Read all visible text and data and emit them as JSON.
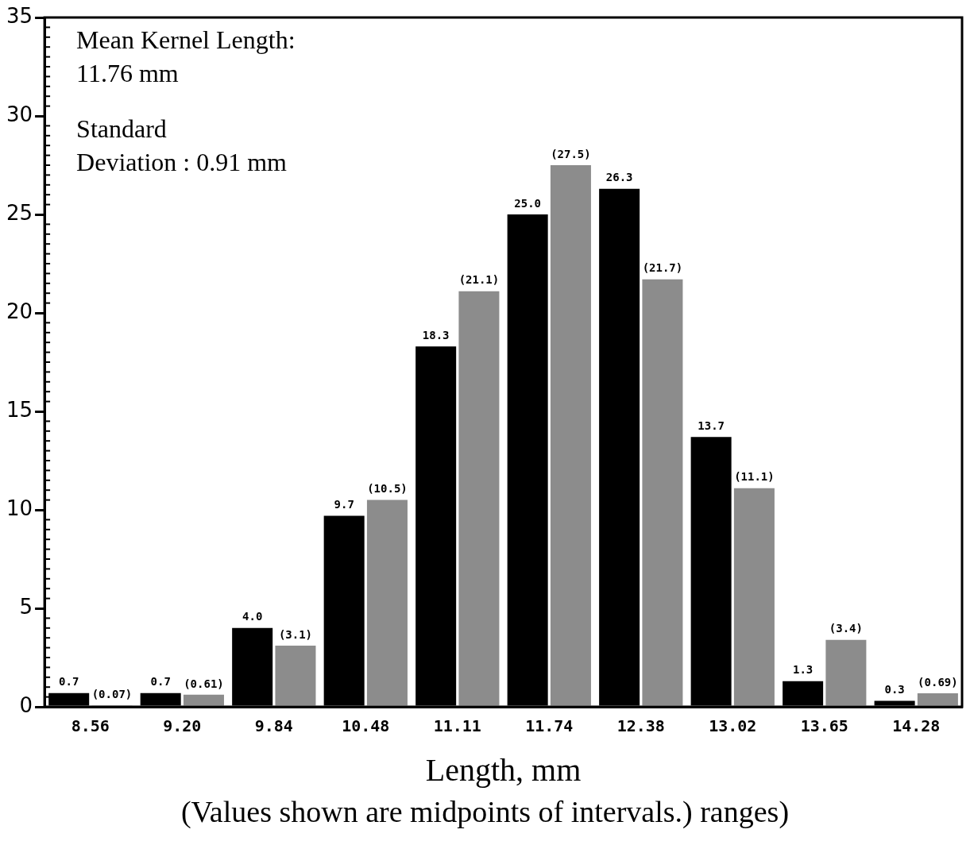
{
  "chart_data": {
    "type": "bar",
    "xlabel": "Length, mm",
    "categories": [
      "8.56",
      "9.20",
      "9.84",
      "10.48",
      "11.11",
      "11.74",
      "12.38",
      "13.02",
      "13.65",
      "14.28"
    ],
    "series": [
      {
        "color": "#000000",
        "values": [
          0.7,
          0.7,
          4.0,
          9.7,
          18.3,
          25.0,
          26.3,
          13.7,
          1.3,
          0.3
        ],
        "value_labels": [
          "0.7",
          "0.7",
          "4.0",
          "9.7",
          "18.3",
          "25.0",
          "26.3",
          "13.7",
          "1.3",
          "0.3"
        ]
      },
      {
        "color": "#8c8c8c",
        "values": [
          0.07,
          0.61,
          3.1,
          10.5,
          21.1,
          27.5,
          21.7,
          11.1,
          3.4,
          0.69
        ],
        "value_labels": [
          "(0.07)",
          "(0.61)",
          "(3.1)",
          "(10.5)",
          "(21.1)",
          "(27.5)",
          "(21.7)",
          "(11.1)",
          "(3.4)",
          "(0.69)"
        ]
      }
    ],
    "ylim": [
      0,
      35
    ],
    "yticks": [
      0,
      5,
      10,
      15,
      20,
      25,
      30,
      35
    ],
    "grid": false,
    "legend": false,
    "annotations": [
      "Mean Kernel Length:\n11.76 mm",
      "Standard\nDeviation : 0.91 mm",
      "(Values shown are midpoints of intervals.) ranges)"
    ]
  }
}
